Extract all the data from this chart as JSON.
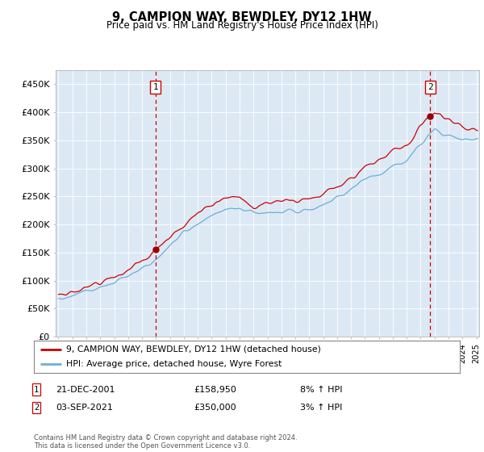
{
  "title": "9, CAMPION WAY, BEWDLEY, DY12 1HW",
  "subtitle": "Price paid vs. HM Land Registry's House Price Index (HPI)",
  "legend_line1": "9, CAMPION WAY, BEWDLEY, DY12 1HW (detached house)",
  "legend_line2": "HPI: Average price, detached house, Wyre Forest",
  "annotation1_date": "21-DEC-2001",
  "annotation1_price": "£158,950",
  "annotation1_hpi": "8% ↑ HPI",
  "annotation2_date": "03-SEP-2021",
  "annotation2_price": "£350,000",
  "annotation2_hpi": "3% ↑ HPI",
  "footer": "Contains HM Land Registry data © Crown copyright and database right 2024.\nThis data is licensed under the Open Government Licence v3.0.",
  "plot_bg_color": "#dce9f5",
  "fig_bg_color": "#ffffff",
  "hpi_line_color": "#6baed6",
  "price_line_color": "#cc0000",
  "vline_color": "#cc0000",
  "dot_color": "#990000",
  "ylim_min": 0,
  "ylim_max": 475000,
  "yticks": [
    0,
    50000,
    100000,
    150000,
    200000,
    250000,
    300000,
    350000,
    400000,
    450000
  ],
  "ytick_labels": [
    "£0",
    "£50K",
    "£100K",
    "£150K",
    "£200K",
    "£250K",
    "£300K",
    "£350K",
    "£400K",
    "£450K"
  ],
  "year_start": 1995,
  "year_end": 2025,
  "purchase1_year": 2001.97,
  "purchase1_value": 158950,
  "purchase2_year": 2021.67,
  "purchase2_value": 350000
}
